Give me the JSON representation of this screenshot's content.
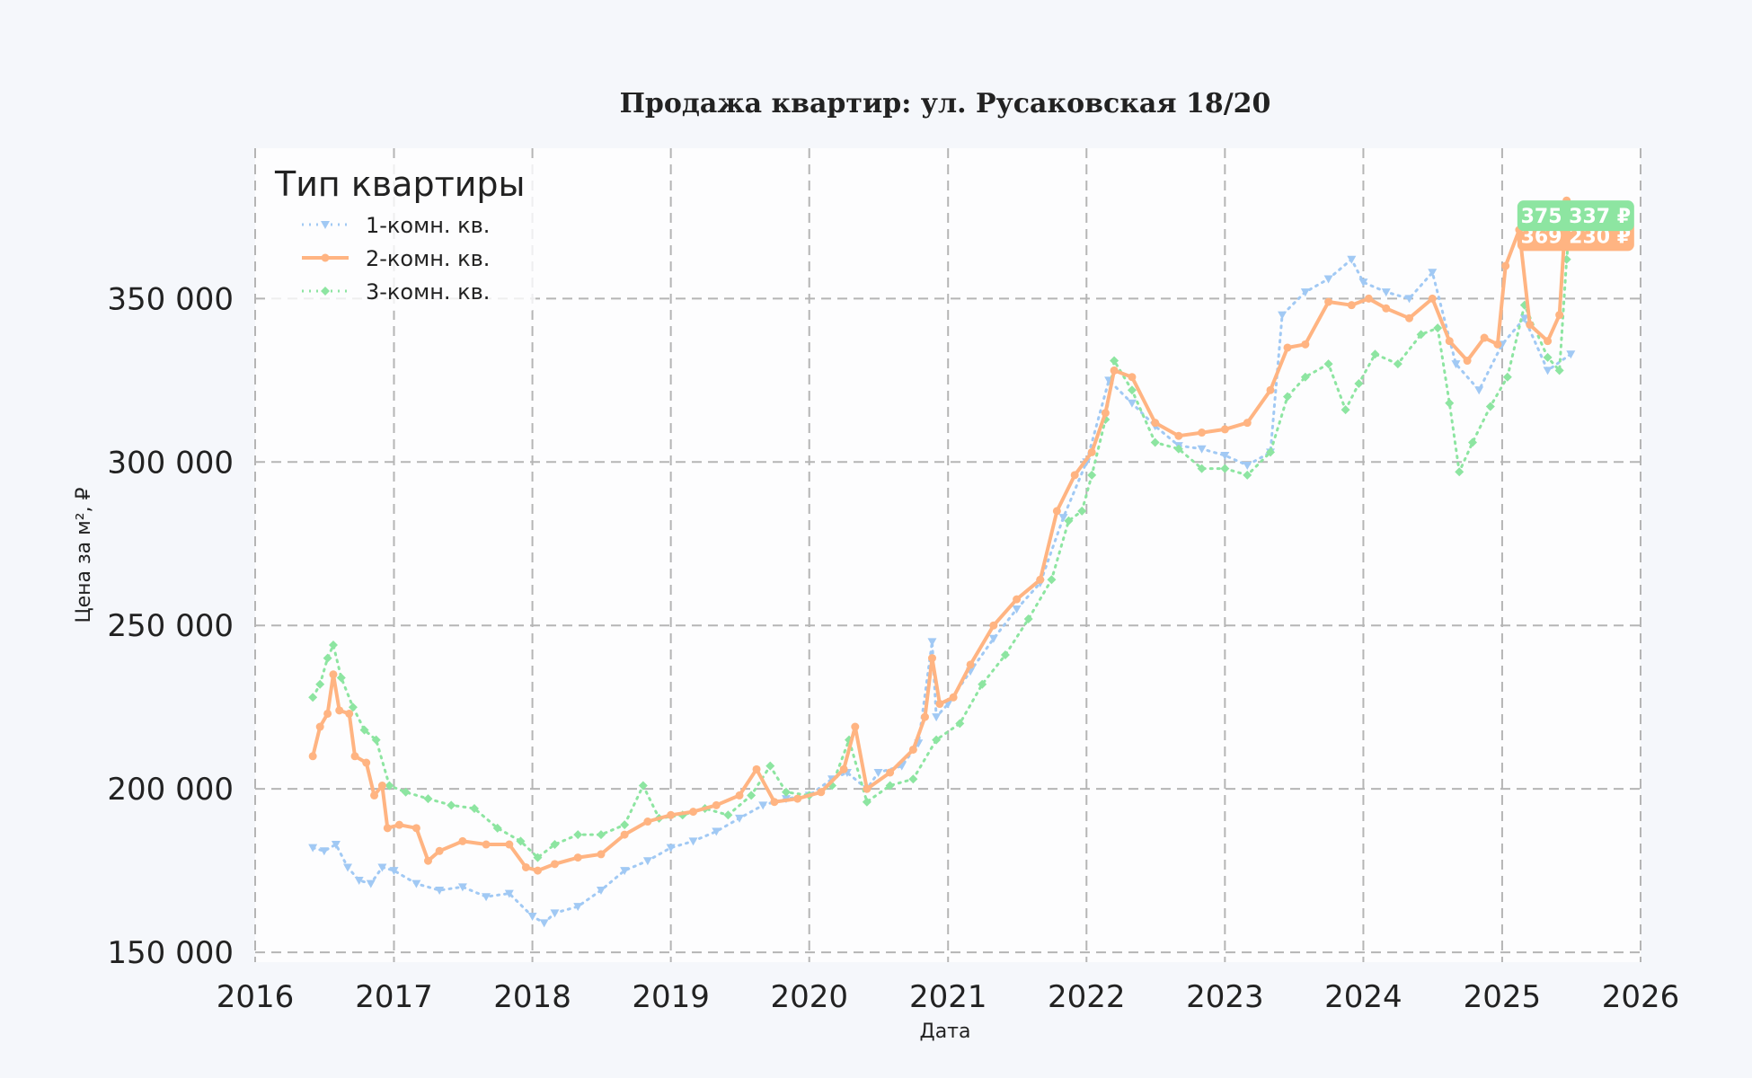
{
  "chart_data": {
    "type": "line",
    "title": "Продажа квартир: ул. Русаковская 18/20",
    "xlabel": "Дата",
    "ylabel": "Цена за м², ₽",
    "xlim": [
      "2016-01-01",
      "2026-01-01"
    ],
    "ylim": [
      147000,
      396000
    ],
    "x_ticks": [
      "2016",
      "2017",
      "2018",
      "2019",
      "2020",
      "2021",
      "2022",
      "2023",
      "2024",
      "2025",
      "2026"
    ],
    "y_ticks": [
      150000,
      200000,
      250000,
      300000,
      350000
    ],
    "y_tick_labels": [
      "150 000",
      "200 000",
      "250 000",
      "300 000",
      "350 000"
    ],
    "grid": true,
    "legend": {
      "title": "Тип квартиры",
      "placement": "top-left"
    },
    "colors": {
      "s1": "#a1c9f4",
      "s2": "#ffb482",
      "s3": "#8de5a1",
      "plot_bg": "#fdfdfe",
      "figure_bg": "#f5f7fb"
    },
    "series": [
      {
        "name": "1-комн. кв.",
        "marker": "triangle-down",
        "line": "dotted",
        "color": "#a1c9f4",
        "last_label": "",
        "points": [
          [
            "2016-06-01",
            182000
          ],
          [
            "2016-07-01",
            181000
          ],
          [
            "2016-08-01",
            183000
          ],
          [
            "2016-09-01",
            176000
          ],
          [
            "2016-10-01",
            172000
          ],
          [
            "2016-11-01",
            171000
          ],
          [
            "2016-12-01",
            176000
          ],
          [
            "2017-01-01",
            175000
          ],
          [
            "2017-03-01",
            171000
          ],
          [
            "2017-05-01",
            169000
          ],
          [
            "2017-07-01",
            170000
          ],
          [
            "2017-09-01",
            167000
          ],
          [
            "2017-11-01",
            168000
          ],
          [
            "2018-01-01",
            161000
          ],
          [
            "2018-02-01",
            159000
          ],
          [
            "2018-03-01",
            162000
          ],
          [
            "2018-05-01",
            164000
          ],
          [
            "2018-07-01",
            169000
          ],
          [
            "2018-09-01",
            175000
          ],
          [
            "2018-11-01",
            178000
          ],
          [
            "2019-01-01",
            182000
          ],
          [
            "2019-03-01",
            184000
          ],
          [
            "2019-05-01",
            187000
          ],
          [
            "2019-07-01",
            191000
          ],
          [
            "2019-09-01",
            195000
          ],
          [
            "2019-11-01",
            197000
          ],
          [
            "2020-01-01",
            198000
          ],
          [
            "2020-03-01",
            203000
          ],
          [
            "2020-04-10",
            205000
          ],
          [
            "2020-06-01",
            200000
          ],
          [
            "2020-07-01",
            205000
          ],
          [
            "2020-09-01",
            207000
          ],
          [
            "2020-10-15",
            214000
          ],
          [
            "2020-11-20",
            245000
          ],
          [
            "2020-12-01",
            222000
          ],
          [
            "2021-01-01",
            226000
          ],
          [
            "2021-03-01",
            236000
          ],
          [
            "2021-05-01",
            246000
          ],
          [
            "2021-07-01",
            255000
          ],
          [
            "2021-09-01",
            263000
          ],
          [
            "2021-11-01",
            283000
          ],
          [
            "2022-01-01",
            300000
          ],
          [
            "2022-03-01",
            325000
          ],
          [
            "2022-05-01",
            318000
          ],
          [
            "2022-07-01",
            311000
          ],
          [
            "2022-09-01",
            305000
          ],
          [
            "2022-11-01",
            304000
          ],
          [
            "2023-01-01",
            302000
          ],
          [
            "2023-03-01",
            299000
          ],
          [
            "2023-05-01",
            303000
          ],
          [
            "2023-06-01",
            345000
          ],
          [
            "2023-08-01",
            352000
          ],
          [
            "2023-10-01",
            356000
          ],
          [
            "2023-12-01",
            362000
          ],
          [
            "2024-01-01",
            355000
          ],
          [
            "2024-03-01",
            352000
          ],
          [
            "2024-05-01",
            350000
          ],
          [
            "2024-07-01",
            358000
          ],
          [
            "2024-09-01",
            330000
          ],
          [
            "2024-11-01",
            322000
          ],
          [
            "2025-01-01",
            336000
          ],
          [
            "2025-03-01",
            344000
          ],
          [
            "2025-05-01",
            328000
          ],
          [
            "2025-07-01",
            333000
          ]
        ]
      },
      {
        "name": "2-комн. кв.",
        "marker": "circle",
        "line": "solid",
        "color": "#ffb482",
        "last_label": "369 230 ₽",
        "points": [
          [
            "2016-06-01",
            210000
          ],
          [
            "2016-06-20",
            219000
          ],
          [
            "2016-07-10",
            223000
          ],
          [
            "2016-07-25",
            235000
          ],
          [
            "2016-08-10",
            224000
          ],
          [
            "2016-09-05",
            223000
          ],
          [
            "2016-09-20",
            210000
          ],
          [
            "2016-10-20",
            208000
          ],
          [
            "2016-11-10",
            198000
          ],
          [
            "2016-12-01",
            201000
          ],
          [
            "2016-12-15",
            188000
          ],
          [
            "2017-01-15",
            189000
          ],
          [
            "2017-03-01",
            188000
          ],
          [
            "2017-04-01",
            178000
          ],
          [
            "2017-05-01",
            181000
          ],
          [
            "2017-07-01",
            184000
          ],
          [
            "2017-09-01",
            183000
          ],
          [
            "2017-11-01",
            183000
          ],
          [
            "2017-12-15",
            176000
          ],
          [
            "2018-01-15",
            175000
          ],
          [
            "2018-03-01",
            177000
          ],
          [
            "2018-05-01",
            179000
          ],
          [
            "2018-07-01",
            180000
          ],
          [
            "2018-09-01",
            186000
          ],
          [
            "2018-11-01",
            190000
          ],
          [
            "2019-01-01",
            192000
          ],
          [
            "2019-03-01",
            193000
          ],
          [
            "2019-05-01",
            195000
          ],
          [
            "2019-07-01",
            198000
          ],
          [
            "2019-08-15",
            206000
          ],
          [
            "2019-10-01",
            196000
          ],
          [
            "2019-12-01",
            197000
          ],
          [
            "2020-02-01",
            199000
          ],
          [
            "2020-04-01",
            206000
          ],
          [
            "2020-05-01",
            219000
          ],
          [
            "2020-06-01",
            200000
          ],
          [
            "2020-08-01",
            205000
          ],
          [
            "2020-10-01",
            212000
          ],
          [
            "2020-11-01",
            222000
          ],
          [
            "2020-11-20",
            240000
          ],
          [
            "2020-12-10",
            226000
          ],
          [
            "2021-01-15",
            228000
          ],
          [
            "2021-03-01",
            238000
          ],
          [
            "2021-05-01",
            250000
          ],
          [
            "2021-07-01",
            258000
          ],
          [
            "2021-09-01",
            264000
          ],
          [
            "2021-10-15",
            285000
          ],
          [
            "2021-12-01",
            296000
          ],
          [
            "2022-01-15",
            303000
          ],
          [
            "2022-02-20",
            315000
          ],
          [
            "2022-03-15",
            328000
          ],
          [
            "2022-05-01",
            326000
          ],
          [
            "2022-07-01",
            312000
          ],
          [
            "2022-09-01",
            308000
          ],
          [
            "2022-11-01",
            309000
          ],
          [
            "2023-01-01",
            310000
          ],
          [
            "2023-03-01",
            312000
          ],
          [
            "2023-05-01",
            322000
          ],
          [
            "2023-06-15",
            335000
          ],
          [
            "2023-08-01",
            336000
          ],
          [
            "2023-10-01",
            349000
          ],
          [
            "2023-12-01",
            348000
          ],
          [
            "2024-01-15",
            350000
          ],
          [
            "2024-03-01",
            347000
          ],
          [
            "2024-05-01",
            344000
          ],
          [
            "2024-07-01",
            350000
          ],
          [
            "2024-08-15",
            337000
          ],
          [
            "2024-10-01",
            331000
          ],
          [
            "2024-11-15",
            338000
          ],
          [
            "2024-12-20",
            336000
          ],
          [
            "2025-01-10",
            360000
          ],
          [
            "2025-02-15",
            371000
          ],
          [
            "2025-03-15",
            342000
          ],
          [
            "2025-05-01",
            337000
          ],
          [
            "2025-06-01",
            345000
          ],
          [
            "2025-06-20",
            380000
          ],
          [
            "2025-07-01",
            369230
          ]
        ]
      },
      {
        "name": "3-комн. кв.",
        "marker": "diamond",
        "line": "dotted",
        "color": "#8de5a1",
        "last_label": "375 337 ₽",
        "points": [
          [
            "2016-06-01",
            228000
          ],
          [
            "2016-06-20",
            232000
          ],
          [
            "2016-07-10",
            240000
          ],
          [
            "2016-07-25",
            244000
          ],
          [
            "2016-08-15",
            234000
          ],
          [
            "2016-09-15",
            225000
          ],
          [
            "2016-10-15",
            218000
          ],
          [
            "2016-11-15",
            215000
          ],
          [
            "2016-12-20",
            201000
          ],
          [
            "2017-02-01",
            199000
          ],
          [
            "2017-04-01",
            197000
          ],
          [
            "2017-06-01",
            195000
          ],
          [
            "2017-08-01",
            194000
          ],
          [
            "2017-10-01",
            188000
          ],
          [
            "2017-12-01",
            184000
          ],
          [
            "2018-01-15",
            179000
          ],
          [
            "2018-03-01",
            183000
          ],
          [
            "2018-05-01",
            186000
          ],
          [
            "2018-07-01",
            186000
          ],
          [
            "2018-09-01",
            189000
          ],
          [
            "2018-10-20",
            201000
          ],
          [
            "2018-12-01",
            191000
          ],
          [
            "2019-02-01",
            192000
          ],
          [
            "2019-04-01",
            194000
          ],
          [
            "2019-06-01",
            192000
          ],
          [
            "2019-08-01",
            198000
          ],
          [
            "2019-09-20",
            207000
          ],
          [
            "2019-11-01",
            199000
          ],
          [
            "2020-01-01",
            198000
          ],
          [
            "2020-03-01",
            201000
          ],
          [
            "2020-04-15",
            215000
          ],
          [
            "2020-06-01",
            196000
          ],
          [
            "2020-08-01",
            201000
          ],
          [
            "2020-10-01",
            203000
          ],
          [
            "2020-12-01",
            215000
          ],
          [
            "2021-02-01",
            220000
          ],
          [
            "2021-04-01",
            232000
          ],
          [
            "2021-06-01",
            241000
          ],
          [
            "2021-08-01",
            252000
          ],
          [
            "2021-10-01",
            264000
          ],
          [
            "2021-11-15",
            282000
          ],
          [
            "2021-12-20",
            285000
          ],
          [
            "2022-01-15",
            296000
          ],
          [
            "2022-02-20",
            313000
          ],
          [
            "2022-03-15",
            331000
          ],
          [
            "2022-05-01",
            322000
          ],
          [
            "2022-07-01",
            306000
          ],
          [
            "2022-09-01",
            304000
          ],
          [
            "2022-11-01",
            298000
          ],
          [
            "2023-01-01",
            298000
          ],
          [
            "2023-03-01",
            296000
          ],
          [
            "2023-05-01",
            303000
          ],
          [
            "2023-06-15",
            320000
          ],
          [
            "2023-08-01",
            326000
          ],
          [
            "2023-10-01",
            330000
          ],
          [
            "2023-11-15",
            316000
          ],
          [
            "2023-12-20",
            324000
          ],
          [
            "2024-02-01",
            333000
          ],
          [
            "2024-04-01",
            330000
          ],
          [
            "2024-06-01",
            339000
          ],
          [
            "2024-07-15",
            341000
          ],
          [
            "2024-08-15",
            318000
          ],
          [
            "2024-09-10",
            297000
          ],
          [
            "2024-10-15",
            306000
          ],
          [
            "2024-12-01",
            317000
          ],
          [
            "2025-01-15",
            326000
          ],
          [
            "2025-03-01",
            348000
          ],
          [
            "2025-05-01",
            332000
          ],
          [
            "2025-06-01",
            328000
          ],
          [
            "2025-06-20",
            362000
          ],
          [
            "2025-07-01",
            375337
          ]
        ]
      }
    ]
  }
}
